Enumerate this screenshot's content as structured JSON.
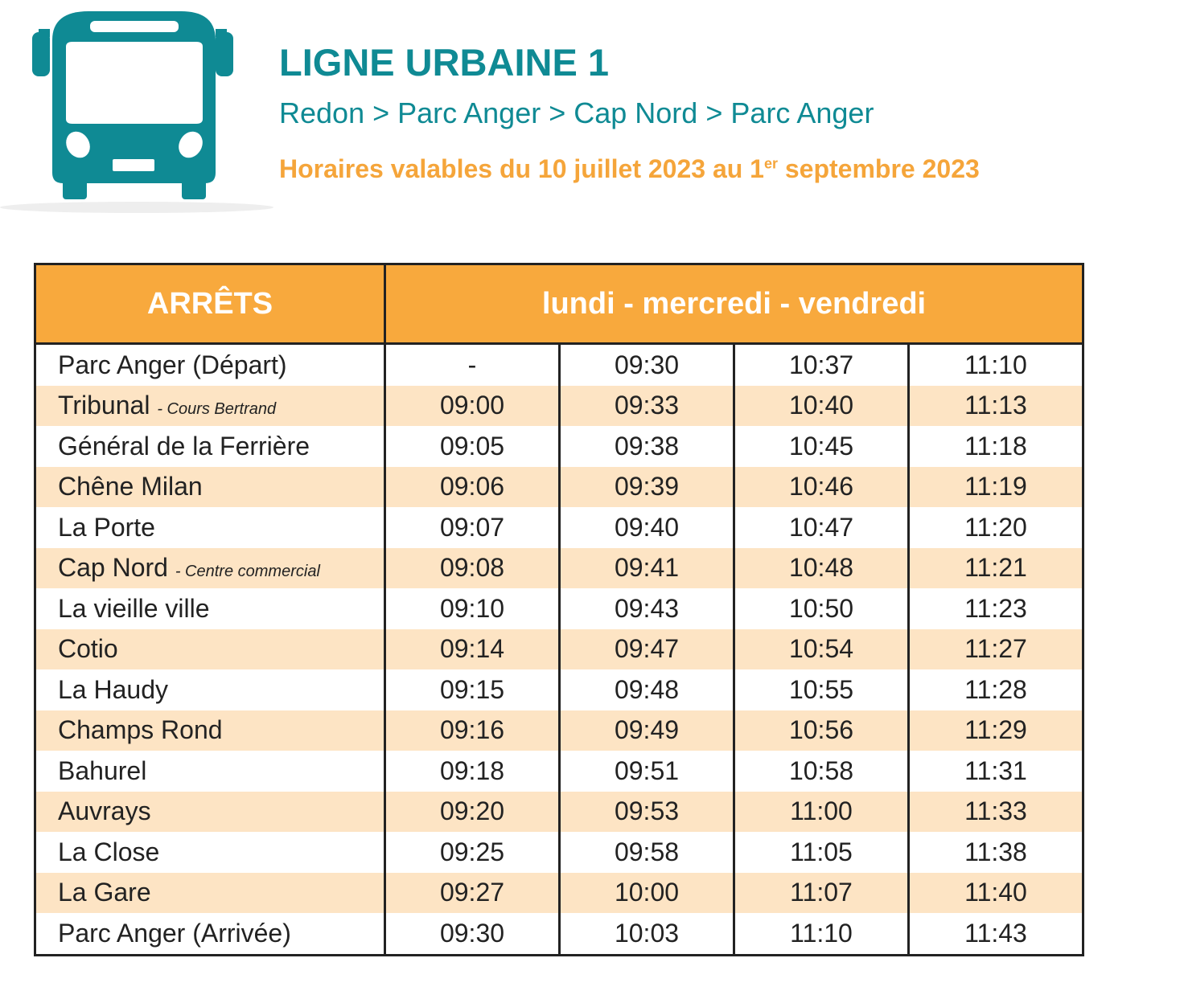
{
  "header": {
    "title": "LIGNE URBAINE 1",
    "route": "Redon > Parc Anger > Cap Nord > Parc Anger",
    "validity": {
      "before": "Horaires valables du 10 juillet 2023 au 1",
      "sup": "er",
      "after": " septembre 2023"
    }
  },
  "table": {
    "columns": [
      "ARRÊTS",
      "lundi - mercredi - vendredi"
    ],
    "rows": [
      {
        "stop": "Parc Anger (Départ)",
        "times": [
          "-",
          "09:30",
          "10:37",
          "11:10"
        ]
      },
      {
        "stop": "Tribunal",
        "note": "- Cours Bertrand",
        "times": [
          "09:00",
          "09:33",
          "10:40",
          "11:13"
        ]
      },
      {
        "stop": "Général de la Ferrière",
        "times": [
          "09:05",
          "09:38",
          "10:45",
          "11:18"
        ]
      },
      {
        "stop": "Chêne Milan",
        "times": [
          "09:06",
          "09:39",
          "10:46",
          "11:19"
        ]
      },
      {
        "stop": "La Porte",
        "times": [
          "09:07",
          "09:40",
          "10:47",
          "11:20"
        ]
      },
      {
        "stop": "Cap Nord",
        "note": "- Centre commercial",
        "times": [
          "09:08",
          "09:41",
          "10:48",
          "11:21"
        ]
      },
      {
        "stop": "La vieille ville",
        "times": [
          "09:10",
          "09:43",
          "10:50",
          "11:23"
        ]
      },
      {
        "stop": "Cotio",
        "times": [
          "09:14",
          "09:47",
          "10:54",
          "11:27"
        ]
      },
      {
        "stop": "La Haudy",
        "times": [
          "09:15",
          "09:48",
          "10:55",
          "11:28"
        ]
      },
      {
        "stop": "Champs Rond",
        "times": [
          "09:16",
          "09:49",
          "10:56",
          "11:29"
        ]
      },
      {
        "stop": "Bahurel",
        "times": [
          "09:18",
          "09:51",
          "10:58",
          "11:31"
        ]
      },
      {
        "stop": "Auvrays",
        "times": [
          "09:20",
          "09:53",
          "11:00",
          "11:33"
        ]
      },
      {
        "stop": "La Close",
        "times": [
          "09:25",
          "09:58",
          "11:05",
          "11:38"
        ]
      },
      {
        "stop": "La Gare",
        "times": [
          "09:27",
          "10:00",
          "11:07",
          "11:40"
        ]
      },
      {
        "stop": "Parc Anger (Arrivée)",
        "times": [
          "09:30",
          "10:03",
          "11:10",
          "11:43"
        ]
      }
    ]
  }
}
